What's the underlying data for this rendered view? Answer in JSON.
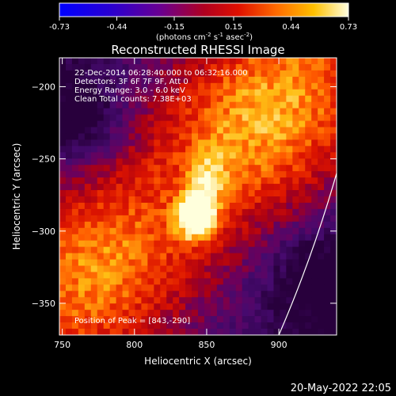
{
  "chart_data": {
    "type": "heatmap",
    "title": "Reconstructed RHESSI Image",
    "xlabel": "Heliocentric X (arcsec)",
    "ylabel": "Heliocentric Y (arcsec)",
    "xlim": [
      748,
      940
    ],
    "ylim": [
      -372,
      -180
    ],
    "xticks": [
      750,
      800,
      850,
      900
    ],
    "yticks": [
      -200,
      -250,
      -300,
      -350
    ],
    "colorbar": {
      "range": [
        -0.73,
        0.73
      ],
      "ticks": [
        "-0.73",
        "-0.44",
        "-0.15",
        "0.15",
        "0.44",
        "0.73"
      ],
      "unit_label": "(photons cm",
      "unit_sup1": "-2",
      "unit_mid1": " s",
      "unit_sup2": "-1",
      "unit_mid2": " asec",
      "unit_sup3": "-2",
      "unit_end": ")"
    },
    "info_lines": [
      "22-Dec-2014 06:28:40.000 to 06:32:16.000",
      "Detectors: 3F 6F 7F 9F, Att 0",
      "Energy Range: 3.0 - 6.0 keV",
      "Clean     Total counts: 7.38E+03"
    ],
    "peak_label": "Position of Peak = [843,-290]",
    "peak": {
      "x": 843,
      "y": -290
    },
    "limb_points": [
      [
        900,
        -372
      ],
      [
        940,
        -260
      ]
    ]
  },
  "footer": {
    "date": "20-May-2022 22:05"
  }
}
